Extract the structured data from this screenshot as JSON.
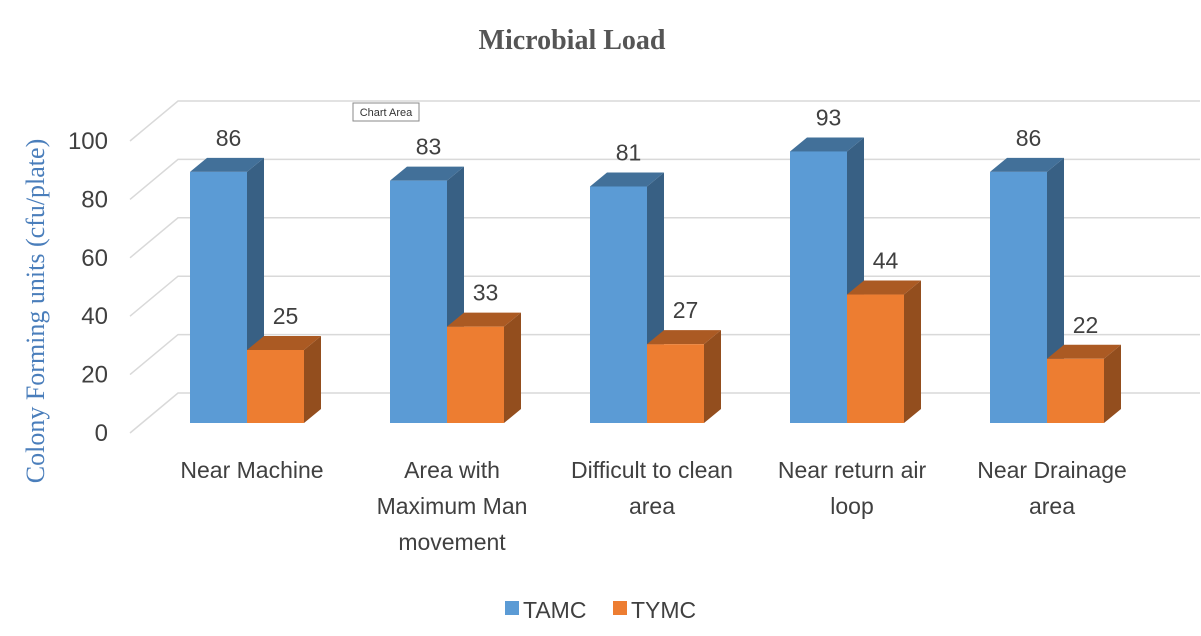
{
  "chart_data": {
    "type": "bar",
    "title": "Microbial Load",
    "xlabel": "",
    "ylabel": "Colony Forming units (cfu/plate)",
    "ylim": [
      0,
      100
    ],
    "yticks": [
      0,
      20,
      40,
      60,
      80,
      100
    ],
    "grid": true,
    "legend_position": "bottom",
    "style": "3d-clustered-column",
    "categories": [
      [
        "Near Machine"
      ],
      [
        "Area with",
        "Maximum Man",
        "movement"
      ],
      [
        "Difficult to clean",
        "area"
      ],
      [
        "Near return air",
        "loop"
      ],
      [
        "Near Drainage",
        "area"
      ]
    ],
    "series": [
      {
        "name": "TAMC",
        "values": [
          86,
          83,
          81,
          93,
          86
        ],
        "color": "#5b9bd5"
      },
      {
        "name": "TYMC",
        "values": [
          25,
          33,
          27,
          44,
          22
        ],
        "color": "#ed7d31"
      }
    ]
  },
  "tooltip": {
    "text": "Chart Area"
  }
}
